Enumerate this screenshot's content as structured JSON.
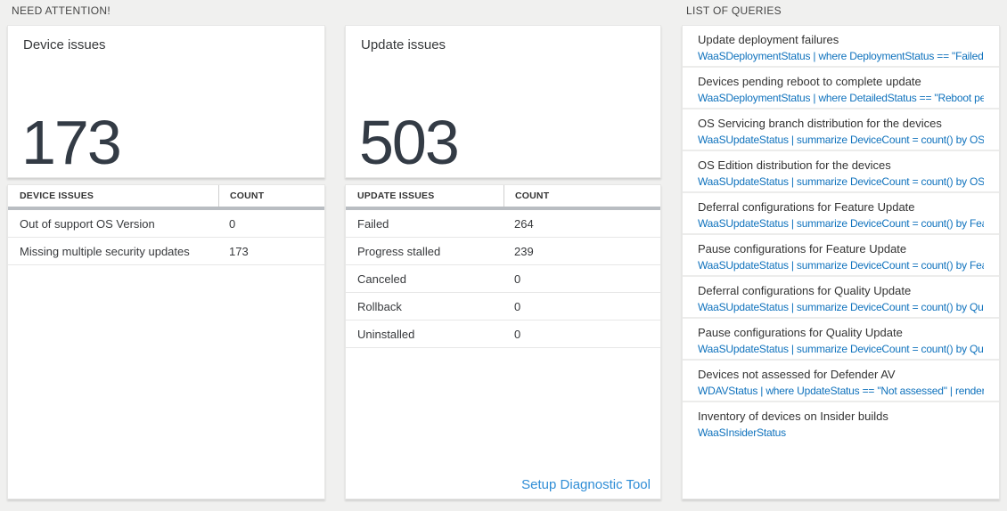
{
  "need_attention": {
    "section_title": "NEED ATTENTION!",
    "device_card": {
      "title": "Device issues",
      "count": "173"
    },
    "device_table": {
      "headers": [
        "DEVICE ISSUES",
        "COUNT"
      ],
      "rows": [
        {
          "label": "Out of support OS Version",
          "count": "0"
        },
        {
          "label": "Missing multiple security updates",
          "count": "173"
        }
      ]
    },
    "update_card": {
      "title": "Update issues",
      "count": "503"
    },
    "update_table": {
      "headers": [
        "UPDATE ISSUES",
        "COUNT"
      ],
      "rows": [
        {
          "label": "Failed",
          "count": "264"
        },
        {
          "label": "Progress stalled",
          "count": "239"
        },
        {
          "label": "Canceled",
          "count": "0"
        },
        {
          "label": "Rollback",
          "count": "0"
        },
        {
          "label": "Uninstalled",
          "count": "0"
        }
      ],
      "footer_link": "Setup Diagnostic Tool"
    }
  },
  "queries": {
    "section_title": "LIST OF QUERIES",
    "items": [
      {
        "title": "Update deployment failures",
        "query": "WaaSDeploymentStatus | where DeploymentStatus == \"Failed\" |..."
      },
      {
        "title": "Devices pending reboot to complete update",
        "query": "WaaSDeploymentStatus | where DetailedStatus == \"Reboot pend..."
      },
      {
        "title": "OS Servicing branch distribution for the devices",
        "query": "WaaSUpdateStatus | summarize DeviceCount = count() by OSSer..."
      },
      {
        "title": "OS Edition distribution for the devices",
        "query": "WaaSUpdateStatus | summarize DeviceCount = count() by OSEdit..."
      },
      {
        "title": "Deferral configurations for Feature Update",
        "query": "WaaSUpdateStatus | summarize DeviceCount = count() by Featur..."
      },
      {
        "title": "Pause configurations for Feature Update",
        "query": "WaaSUpdateStatus | summarize DeviceCount = count() by Featur..."
      },
      {
        "title": "Deferral configurations for Quality Update",
        "query": "WaaSUpdateStatus | summarize DeviceCount = count() by Qualit..."
      },
      {
        "title": "Pause configurations for Quality Update",
        "query": "WaaSUpdateStatus | summarize DeviceCount = count() by Qualit..."
      },
      {
        "title": "Devices not assessed for Defender AV",
        "query": "WDAVStatus | where UpdateStatus == \"Not assessed\" | render ta..."
      },
      {
        "title": "Inventory of devices on Insider builds",
        "query": "WaaSInsiderStatus"
      }
    ]
  },
  "colors": {
    "background": "#f0f0ef",
    "query_link_blue": "#0f72bd",
    "footer_link_blue": "#2e8dd6",
    "big_number": "#333b45",
    "header_bar": "#b9bdc2"
  }
}
